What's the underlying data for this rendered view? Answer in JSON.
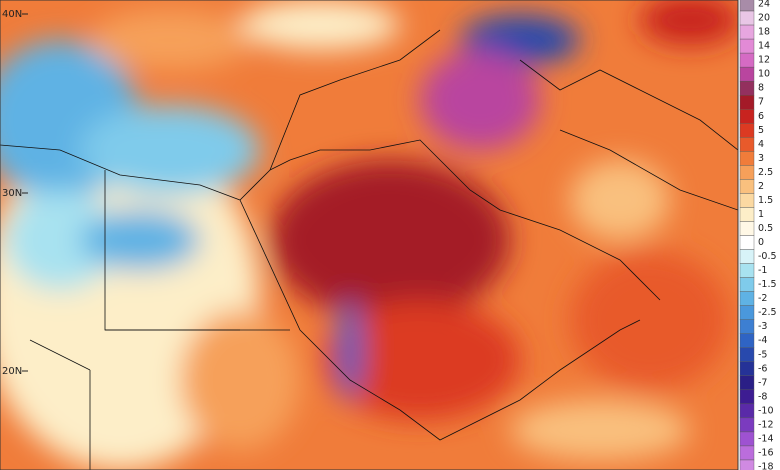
{
  "latitude_labels": [
    "40N",
    "30N",
    "20N"
  ],
  "colorbar": {
    "labels": [
      24,
      20,
      18,
      14,
      12,
      10,
      8,
      7,
      6,
      5,
      4,
      3,
      2.5,
      2,
      1.5,
      1,
      0.5,
      0,
      -0.5,
      -1,
      -1.5,
      -2,
      -2.5,
      -3,
      -4,
      -5,
      -6,
      -7,
      -8,
      -10,
      -12,
      -14,
      -16,
      -18
    ],
    "colors": [
      "#a88ca8",
      "#e9c6e6",
      "#e7a6df",
      "#e28ad6",
      "#d56bc4",
      "#b9459f",
      "#93305e",
      "#a41a28",
      "#c8231f",
      "#dc3a22",
      "#e85a2b",
      "#f07c3a",
      "#f6a05a",
      "#f9c07e",
      "#fbd9a2",
      "#fdeec8",
      "#fff8e6",
      "#ffffff",
      "#d8f3f8",
      "#a8e2f0",
      "#7fcbeb",
      "#5fb2e4",
      "#4a98dc",
      "#3d7fd2",
      "#2f64c4",
      "#2849ad",
      "#253297",
      "#2a1f86",
      "#3d1c92",
      "#5a2aa8",
      "#7b3bbf",
      "#9e52d1",
      "#bb6ddc",
      "#d08ae2"
    ]
  }
}
